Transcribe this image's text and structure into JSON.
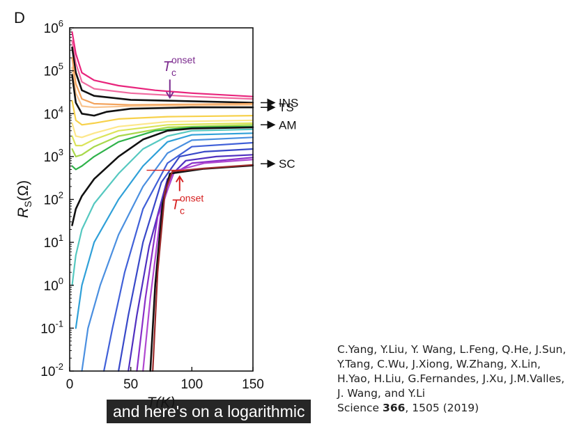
{
  "chart_data": {
    "type": "line",
    "panel_label": "D",
    "xlabel": "T(K)",
    "ylabel_main": "R",
    "ylabel_sub": "S",
    "ylabel_unit": "(Ω)",
    "xlim": [
      0,
      150
    ],
    "ylim_log10": [
      -2,
      6
    ],
    "x_scale": "linear",
    "y_scale": "log",
    "x_ticks": [
      0,
      50,
      100,
      150
    ],
    "y_tick_exponents": [
      -2,
      -1,
      0,
      1,
      2,
      3,
      4,
      5,
      6
    ],
    "y_tick_base": "10",
    "grid": false,
    "annotations": [
      {
        "id": "ins",
        "text": "INS",
        "y": 18000
      },
      {
        "id": "ts",
        "text": "TS",
        "y": 14000
      },
      {
        "id": "am",
        "text": "AM",
        "y": 5500
      },
      {
        "id": "sc",
        "text": "SC",
        "y": 680
      }
    ],
    "tc_onset": {
      "main": "T",
      "sub": "c",
      "sup": "onset",
      "top": {
        "color": "#7b2a8e",
        "x": 82,
        "y": 14000
      },
      "bottom": {
        "color": "#d62020",
        "x": 90,
        "y": 480
      }
    },
    "series": [
      {
        "color": "#e8247c",
        "values": [
          [
            2,
            800000
          ],
          [
            5,
            250000
          ],
          [
            10,
            90000
          ],
          [
            20,
            60000
          ],
          [
            40,
            45000
          ],
          [
            70,
            35000
          ],
          [
            100,
            30000
          ],
          [
            150,
            25000
          ]
        ]
      },
      {
        "color": "#f06aa0",
        "values": [
          [
            2,
            500000
          ],
          [
            5,
            150000
          ],
          [
            10,
            55000
          ],
          [
            20,
            38000
          ],
          [
            50,
            30000
          ],
          [
            100,
            25000
          ],
          [
            150,
            22000
          ]
        ]
      },
      {
        "color": "#111111",
        "values": [
          [
            2,
            350000
          ],
          [
            5,
            90000
          ],
          [
            10,
            35000
          ],
          [
            20,
            26000
          ],
          [
            50,
            21000
          ],
          [
            100,
            19500
          ],
          [
            150,
            18000
          ]
        ]
      },
      {
        "color": "#f3a35c",
        "values": [
          [
            2,
            200000
          ],
          [
            5,
            50000
          ],
          [
            10,
            22000
          ],
          [
            20,
            17000
          ],
          [
            50,
            16000
          ],
          [
            100,
            16500
          ],
          [
            150,
            17000
          ]
        ]
      },
      {
        "color": "#f9c48f",
        "values": [
          [
            2,
            120000
          ],
          [
            5,
            30000
          ],
          [
            10,
            15000
          ],
          [
            20,
            14000
          ],
          [
            50,
            15000
          ],
          [
            100,
            15500
          ],
          [
            150,
            16000
          ]
        ]
      },
      {
        "color": "#111111",
        "values": [
          [
            2,
            80000
          ],
          [
            5,
            18000
          ],
          [
            10,
            10000
          ],
          [
            20,
            9000
          ],
          [
            30,
            11000
          ],
          [
            50,
            13000
          ],
          [
            100,
            14000
          ],
          [
            150,
            14000
          ]
        ]
      },
      {
        "color": "#f7d14b",
        "values": [
          [
            2,
            20000
          ],
          [
            5,
            7000
          ],
          [
            10,
            5500
          ],
          [
            20,
            6000
          ],
          [
            40,
            7500
          ],
          [
            80,
            8500
          ],
          [
            150,
            9000
          ]
        ]
      },
      {
        "color": "#fde78a",
        "values": [
          [
            2,
            6000
          ],
          [
            5,
            3000
          ],
          [
            10,
            2800
          ],
          [
            20,
            3500
          ],
          [
            40,
            5000
          ],
          [
            80,
            6500
          ],
          [
            150,
            7000
          ]
        ]
      },
      {
        "color": "#dbe45a",
        "values": [
          [
            2,
            3000
          ],
          [
            5,
            1800
          ],
          [
            10,
            1800
          ],
          [
            20,
            2500
          ],
          [
            40,
            4000
          ],
          [
            80,
            5500
          ],
          [
            150,
            6000
          ]
        ]
      },
      {
        "color": "#a8d84a",
        "values": [
          [
            2,
            1500
          ],
          [
            5,
            1000
          ],
          [
            10,
            1100
          ],
          [
            20,
            1700
          ],
          [
            40,
            3000
          ],
          [
            80,
            4800
          ],
          [
            150,
            5500
          ]
        ]
      },
      {
        "color": "#2fb24a",
        "values": [
          [
            2,
            600
          ],
          [
            5,
            500
          ],
          [
            10,
            600
          ],
          [
            20,
            1000
          ],
          [
            40,
            2200
          ],
          [
            70,
            4000
          ],
          [
            100,
            4800
          ],
          [
            150,
            5000
          ]
        ]
      },
      {
        "color": "#111111",
        "values": [
          [
            2,
            25
          ],
          [
            5,
            60
          ],
          [
            10,
            120
          ],
          [
            20,
            300
          ],
          [
            40,
            1000
          ],
          [
            60,
            2500
          ],
          [
            80,
            4000
          ],
          [
            100,
            4500
          ],
          [
            150,
            4800
          ]
        ]
      },
      {
        "color": "#55c8c0",
        "values": [
          [
            2,
            1
          ],
          [
            5,
            5
          ],
          [
            10,
            20
          ],
          [
            20,
            80
          ],
          [
            40,
            400
          ],
          [
            60,
            1500
          ],
          [
            80,
            3000
          ],
          [
            100,
            4000
          ],
          [
            150,
            4300
          ]
        ]
      },
      {
        "color": "#2fa0d8",
        "values": [
          [
            5,
            0.1
          ],
          [
            10,
            1
          ],
          [
            20,
            10
          ],
          [
            40,
            100
          ],
          [
            60,
            600
          ],
          [
            80,
            2200
          ],
          [
            100,
            3200
          ],
          [
            150,
            3500
          ]
        ]
      },
      {
        "color": "#4a8fe0",
        "values": [
          [
            10,
            0.01
          ],
          [
            15,
            0.1
          ],
          [
            25,
            1
          ],
          [
            40,
            15
          ],
          [
            60,
            200
          ],
          [
            80,
            1200
          ],
          [
            100,
            2400
          ],
          [
            150,
            2800
          ]
        ]
      },
      {
        "color": "#4060d8",
        "values": [
          [
            28,
            0.01
          ],
          [
            35,
            0.1
          ],
          [
            45,
            2
          ],
          [
            60,
            60
          ],
          [
            80,
            700
          ],
          [
            100,
            1700
          ],
          [
            150,
            2100
          ]
        ]
      },
      {
        "color": "#3848c8",
        "values": [
          [
            40,
            0.01
          ],
          [
            48,
            0.2
          ],
          [
            60,
            10
          ],
          [
            75,
            250
          ],
          [
            90,
            1000
          ],
          [
            110,
            1300
          ],
          [
            150,
            1500
          ]
        ]
      },
      {
        "color": "#5030c0",
        "values": [
          [
            48,
            0.01
          ],
          [
            55,
            0.2
          ],
          [
            65,
            8
          ],
          [
            80,
            300
          ],
          [
            95,
            800
          ],
          [
            120,
            1000
          ],
          [
            150,
            1100
          ]
        ]
      },
      {
        "color": "#8a2fc8",
        "values": [
          [
            55,
            0.01
          ],
          [
            62,
            0.5
          ],
          [
            72,
            40
          ],
          [
            85,
            400
          ],
          [
            100,
            700
          ],
          [
            150,
            950
          ]
        ]
      },
      {
        "color": "#b048d0",
        "values": [
          [
            60,
            0.01
          ],
          [
            66,
            0.5
          ],
          [
            75,
            60
          ],
          [
            85,
            450
          ],
          [
            110,
            700
          ],
          [
            150,
            850
          ]
        ]
      },
      {
        "color": "#111111",
        "values": [
          [
            66,
            0.01
          ],
          [
            70,
            1
          ],
          [
            76,
            80
          ],
          [
            82,
            400
          ],
          [
            110,
            520
          ],
          [
            150,
            620
          ]
        ]
      },
      {
        "color": "#9a2a2a",
        "values": [
          [
            68,
            0.01
          ],
          [
            72,
            2
          ],
          [
            78,
            150
          ],
          [
            84,
            450
          ],
          [
            110,
            530
          ],
          [
            150,
            640
          ]
        ]
      }
    ]
  },
  "citation": {
    "authors": "C.Yang, Y.Liu, Y. Wang, L.Feng, Q.He, J.Sun, Y.Tang, C.Wu, J.Xiong, W.Zhang, X.Lin, H.Yao, H.Liu, G.Fernandes, J.Xu, J.M.Valles, J. Wang, and Y.Li",
    "journal": "Science",
    "volume": "366",
    "pages_year": ", 1505 (2019)"
  },
  "subtitle": "and here's on a logarithmic"
}
